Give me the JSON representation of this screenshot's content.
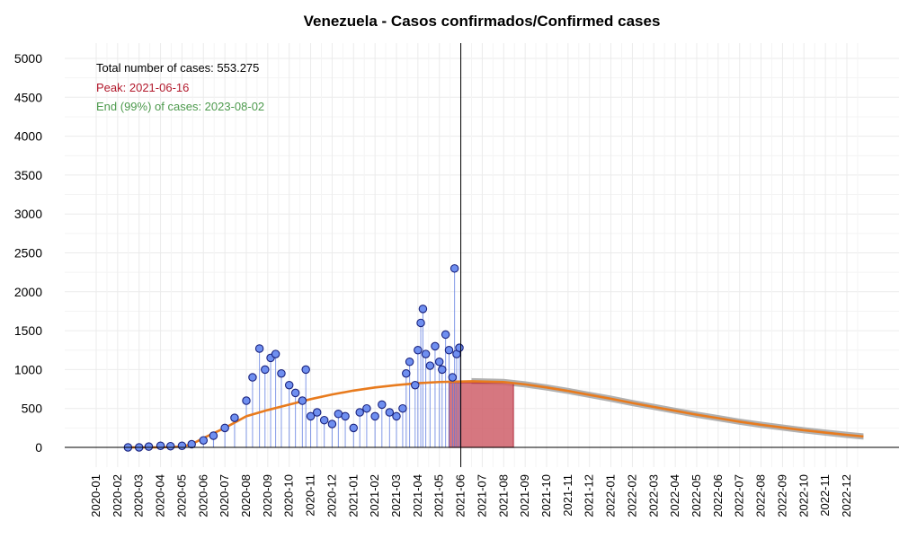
{
  "chart_data": {
    "type": "scatter",
    "title": "Venezuela - Casos confirmados/Confirmed cases",
    "xlabel": "",
    "ylabel": "",
    "ylim": [
      0,
      5000
    ],
    "y_ticks": [
      0,
      500,
      1000,
      1500,
      2000,
      2500,
      3000,
      3500,
      4000,
      4500,
      5000
    ],
    "x_ticks": [
      "2020-01",
      "2020-02",
      "2020-03",
      "2020-04",
      "2020-05",
      "2020-06",
      "2020-07",
      "2020-08",
      "2020-09",
      "2020-10",
      "2020-11",
      "2020-12",
      "2021-01",
      "2021-02",
      "2021-03",
      "2021-04",
      "2021-05",
      "2021-06",
      "2021-07",
      "2021-08",
      "2021-09",
      "2021-10",
      "2021-11",
      "2021-12",
      "2022-01",
      "2022-02",
      "2022-03",
      "2022-04",
      "2022-05",
      "2022-06",
      "2022-07",
      "2022-08",
      "2022-09",
      "2022-10",
      "2022-11",
      "2022-12"
    ],
    "grid": true,
    "annotations": {
      "total": "Total number of cases: 553.275",
      "peak": "Peak: 2021-06-16",
      "end": "End (99%) of cases: 2023-08-02"
    },
    "colors": {
      "points_fill": "#6f8ff0",
      "points_edge": "#1a237e",
      "stem": "#5a78e0",
      "fit": "#e87b1e",
      "band": "#a8a8a8",
      "bar_fill": "#d0606a",
      "bar_edge": "#b02034",
      "total": "#000000",
      "peak": "#b2182b",
      "end": "#4d9a4d",
      "vline": "#000000"
    },
    "vline_date": "2021-06-01",
    "highlight_bar": {
      "start": "2021-05-15",
      "end": "2021-08-15",
      "value": 830
    },
    "observed": [
      {
        "x": "2020-02-15",
        "y": 0
      },
      {
        "x": "2020-03-01",
        "y": 0
      },
      {
        "x": "2020-03-15",
        "y": 10
      },
      {
        "x": "2020-04-01",
        "y": 20
      },
      {
        "x": "2020-04-15",
        "y": 15
      },
      {
        "x": "2020-05-01",
        "y": 20
      },
      {
        "x": "2020-05-15",
        "y": 40
      },
      {
        "x": "2020-06-01",
        "y": 90
      },
      {
        "x": "2020-06-15",
        "y": 150
      },
      {
        "x": "2020-07-01",
        "y": 250
      },
      {
        "x": "2020-07-15",
        "y": 380
      },
      {
        "x": "2020-08-01",
        "y": 600
      },
      {
        "x": "2020-08-10",
        "y": 900
      },
      {
        "x": "2020-08-20",
        "y": 1270
      },
      {
        "x": "2020-08-28",
        "y": 1000
      },
      {
        "x": "2020-09-05",
        "y": 1150
      },
      {
        "x": "2020-09-12",
        "y": 1200
      },
      {
        "x": "2020-09-20",
        "y": 950
      },
      {
        "x": "2020-10-01",
        "y": 800
      },
      {
        "x": "2020-10-10",
        "y": 700
      },
      {
        "x": "2020-10-20",
        "y": 600
      },
      {
        "x": "2020-10-25",
        "y": 1000
      },
      {
        "x": "2020-11-01",
        "y": 400
      },
      {
        "x": "2020-11-10",
        "y": 450
      },
      {
        "x": "2020-11-20",
        "y": 350
      },
      {
        "x": "2020-12-01",
        "y": 300
      },
      {
        "x": "2020-12-10",
        "y": 430
      },
      {
        "x": "2020-12-20",
        "y": 400
      },
      {
        "x": "2021-01-01",
        "y": 250
      },
      {
        "x": "2021-01-10",
        "y": 450
      },
      {
        "x": "2021-01-20",
        "y": 500
      },
      {
        "x": "2021-02-01",
        "y": 400
      },
      {
        "x": "2021-02-10",
        "y": 550
      },
      {
        "x": "2021-02-20",
        "y": 450
      },
      {
        "x": "2021-03-01",
        "y": 400
      },
      {
        "x": "2021-03-10",
        "y": 500
      },
      {
        "x": "2021-03-15",
        "y": 950
      },
      {
        "x": "2021-03-20",
        "y": 1100
      },
      {
        "x": "2021-03-28",
        "y": 800
      },
      {
        "x": "2021-04-01",
        "y": 1250
      },
      {
        "x": "2021-04-05",
        "y": 1600
      },
      {
        "x": "2021-04-08",
        "y": 1780
      },
      {
        "x": "2021-04-12",
        "y": 1200
      },
      {
        "x": "2021-04-18",
        "y": 1050
      },
      {
        "x": "2021-04-25",
        "y": 1300
      },
      {
        "x": "2021-05-01",
        "y": 1100
      },
      {
        "x": "2021-05-05",
        "y": 1000
      },
      {
        "x": "2021-05-10",
        "y": 1450
      },
      {
        "x": "2021-05-15",
        "y": 1250
      },
      {
        "x": "2021-05-20",
        "y": 900
      },
      {
        "x": "2021-05-23",
        "y": 2300
      },
      {
        "x": "2021-05-26",
        "y": 1200
      },
      {
        "x": "2021-05-30",
        "y": 1280
      }
    ],
    "fitted": [
      {
        "x": "2020-02-15",
        "y": 0
      },
      {
        "x": "2020-04-01",
        "y": 0
      },
      {
        "x": "2020-05-01",
        "y": 10
      },
      {
        "x": "2020-05-15",
        "y": 40
      },
      {
        "x": "2020-06-01",
        "y": 120
      },
      {
        "x": "2020-07-01",
        "y": 250
      },
      {
        "x": "2020-08-01",
        "y": 400
      },
      {
        "x": "2020-09-01",
        "y": 480
      },
      {
        "x": "2020-10-01",
        "y": 550
      },
      {
        "x": "2020-11-01",
        "y": 620
      },
      {
        "x": "2020-12-01",
        "y": 680
      },
      {
        "x": "2021-01-01",
        "y": 730
      },
      {
        "x": "2021-02-01",
        "y": 770
      },
      {
        "x": "2021-03-01",
        "y": 800
      },
      {
        "x": "2021-04-01",
        "y": 825
      },
      {
        "x": "2021-05-01",
        "y": 840
      },
      {
        "x": "2021-06-16",
        "y": 850
      },
      {
        "x": "2021-08-01",
        "y": 840
      },
      {
        "x": "2021-09-01",
        "y": 810
      },
      {
        "x": "2021-10-01",
        "y": 770
      },
      {
        "x": "2021-11-01",
        "y": 725
      },
      {
        "x": "2021-12-01",
        "y": 675
      },
      {
        "x": "2022-01-01",
        "y": 625
      },
      {
        "x": "2022-02-01",
        "y": 570
      },
      {
        "x": "2022-03-01",
        "y": 520
      },
      {
        "x": "2022-04-01",
        "y": 470
      },
      {
        "x": "2022-05-01",
        "y": 420
      },
      {
        "x": "2022-06-01",
        "y": 375
      },
      {
        "x": "2022-07-01",
        "y": 330
      },
      {
        "x": "2022-08-01",
        "y": 290
      },
      {
        "x": "2022-09-01",
        "y": 255
      },
      {
        "x": "2022-10-01",
        "y": 220
      },
      {
        "x": "2022-11-01",
        "y": 190
      },
      {
        "x": "2022-12-01",
        "y": 160
      },
      {
        "x": "2022-12-25",
        "y": 140
      }
    ],
    "band_halfwidth": 40
  }
}
